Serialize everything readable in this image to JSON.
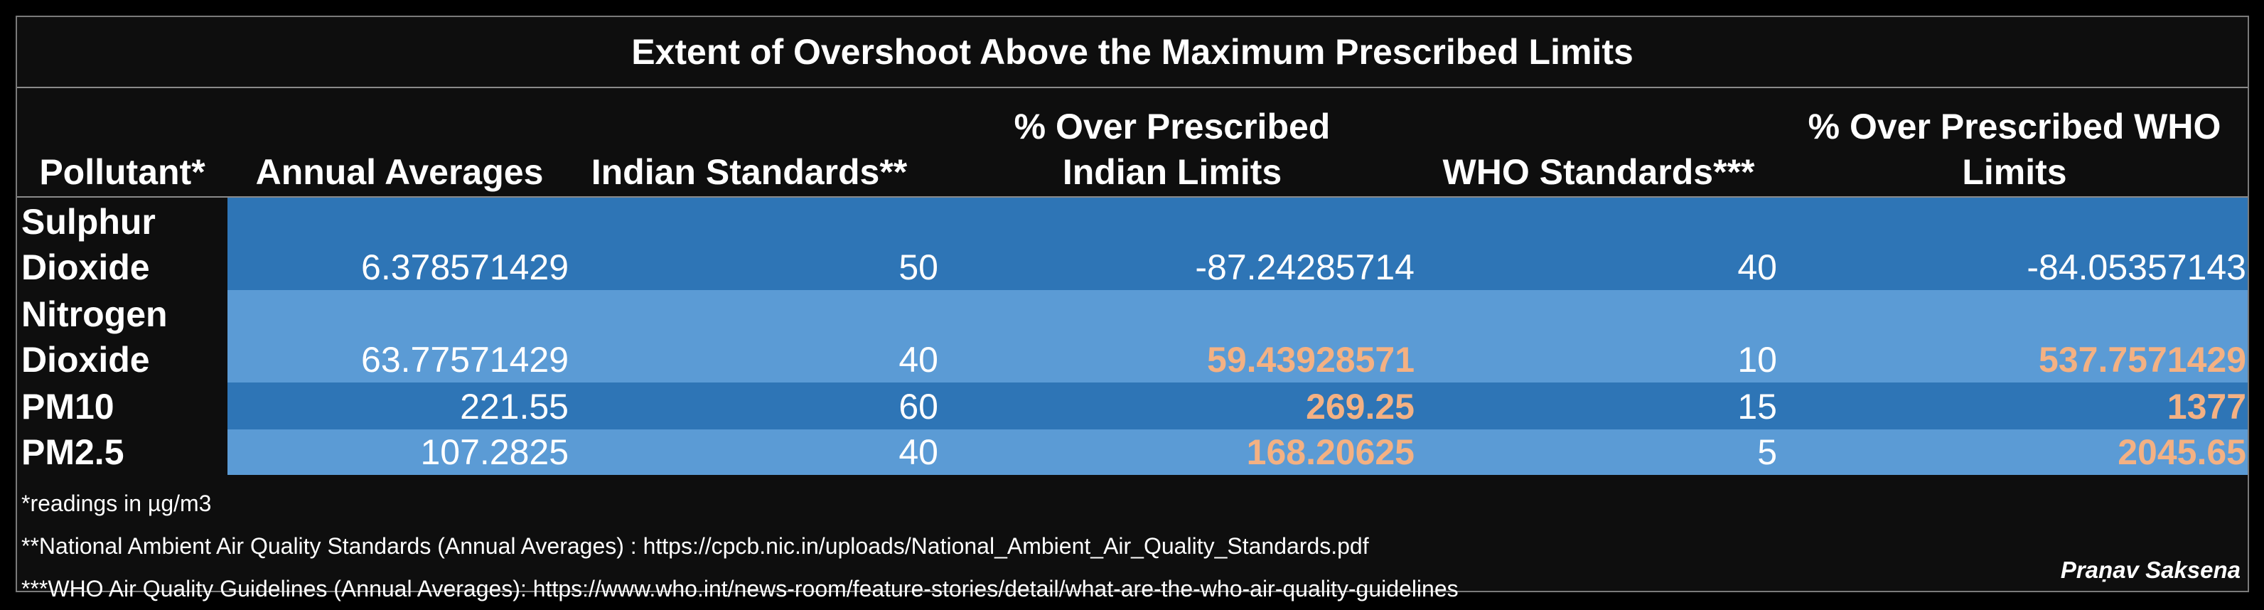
{
  "chart_data": {
    "type": "table",
    "title": "Extent of Overshoot Above the Maximum Prescribed Limits",
    "columns": [
      "Pollutant*",
      "Annual Averages",
      "Indian Standards**",
      "% Over Prescribed Indian Limits",
      "WHO Standards***",
      "% Over Prescribed WHO Limits"
    ],
    "rows": [
      {
        "pollutant": "Sulphur Dioxide",
        "annual_average": "6.378571429",
        "indian_standard": "50",
        "pct_over_indian": "-87.24285714",
        "who_standard": "40",
        "pct_over_who": "-84.05357143",
        "exceeds_indian": false,
        "exceeds_who": false,
        "row_color": "#2e75b6"
      },
      {
        "pollutant": "Nitrogen Dioxide",
        "annual_average": "63.77571429",
        "indian_standard": "40",
        "pct_over_indian": "59.43928571",
        "who_standard": "10",
        "pct_over_who": "537.7571429",
        "exceeds_indian": true,
        "exceeds_who": true,
        "row_color": "#5b9bd5"
      },
      {
        "pollutant": "PM10",
        "annual_average": "221.55",
        "indian_standard": "60",
        "pct_over_indian": "269.25",
        "who_standard": "15",
        "pct_over_who": "1377",
        "exceeds_indian": true,
        "exceeds_who": true,
        "row_color": "#2e75b6"
      },
      {
        "pollutant": "PM2.5",
        "annual_average": "107.2825",
        "indian_standard": "40",
        "pct_over_indian": "168.20625",
        "who_standard": "5",
        "pct_over_who": "2045.65",
        "exceeds_indian": true,
        "exceeds_who": true,
        "row_color": "#5b9bd5"
      }
    ],
    "footnotes": [
      "*readings in µg/m3",
      "**National Ambient Air Quality Standards (Annual Averages) : https://cpcb.nic.in/uploads/National_Ambient_Air_Quality_Standards.pdf",
      "***WHO Air Quality Guidelines (Annual Averages): https://www.who.int/news-room/feature-stories/detail/what-are-the-who-air-quality-guidelines"
    ],
    "credit": "Praṇav Saksena",
    "colors": {
      "background": "#0e0e0e",
      "row_dark": "#2e75b6",
      "row_light": "#5b9bd5",
      "exceed_text": "#f4b183",
      "text": "#ffffff"
    }
  }
}
